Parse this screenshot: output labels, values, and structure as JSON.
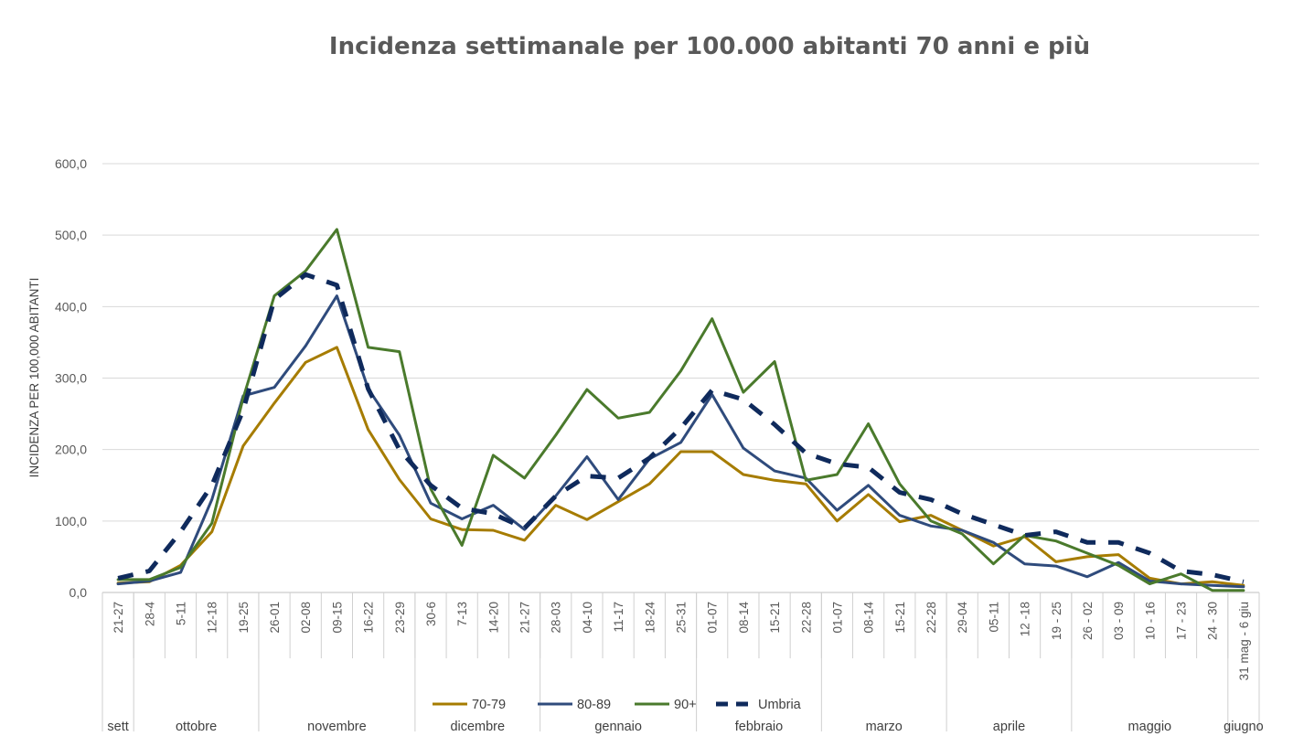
{
  "chart_data": {
    "type": "line",
    "title": "Incidenza settimanale per 100.000 abitanti 70 anni e più",
    "ylabel": "INCIDENZA PER 100,000 ABITANTI",
    "ylim": [
      0,
      600
    ],
    "y_ticks": [
      "0,0",
      "100,0",
      "200,0",
      "300,0",
      "400,0",
      "500,0",
      "600,0"
    ],
    "grid": true,
    "legend_position": "bottom",
    "categories": [
      "21-27",
      "28-4",
      "5-11",
      "12-18",
      "19-25",
      "26-01",
      "02-08",
      "09-15",
      "16-22",
      "23-29",
      "30-6",
      "7-13",
      "14-20",
      "21-27",
      "28-03",
      "04-10",
      "11-17",
      "18-24",
      "25-31",
      "01-07",
      "08-14",
      "15-21",
      "22-28",
      "01-07",
      "08-14",
      "15-21",
      "22-28",
      "29-04",
      "05-11",
      "12 -18",
      "19 - 25",
      "26 - 02",
      "03 - 09",
      "10 - 16",
      "17 - 23",
      "24 - 30",
      "31 mag - 6 giu"
    ],
    "months": [
      {
        "label": "sett",
        "start": 0,
        "end": 0
      },
      {
        "label": "ottobre",
        "start": 1,
        "end": 4
      },
      {
        "label": "novembre",
        "start": 5,
        "end": 9
      },
      {
        "label": "dicembre",
        "start": 10,
        "end": 13
      },
      {
        "label": "gennaio",
        "start": 14,
        "end": 18
      },
      {
        "label": "febbraio",
        "start": 19,
        "end": 22
      },
      {
        "label": "marzo",
        "start": 23,
        "end": 26
      },
      {
        "label": "aprile",
        "start": 27,
        "end": 30
      },
      {
        "label": "maggio",
        "start": 31,
        "end": 35
      },
      {
        "label": "giugno",
        "start": 36,
        "end": 36
      }
    ],
    "series": [
      {
        "name": "70-79",
        "color": "#A67C00",
        "dashed": false,
        "values": [
          13,
          15,
          38,
          85,
          205,
          265,
          322,
          343,
          228,
          158,
          103,
          88,
          87,
          73,
          122,
          102,
          127,
          152,
          197,
          197,
          165,
          157,
          152,
          100,
          137,
          99,
          108,
          87,
          65,
          78,
          43,
          50,
          53,
          20,
          12,
          15,
          10
        ]
      },
      {
        "name": "80-89",
        "color": "#2F4B7C",
        "dashed": false,
        "values": [
          12,
          16,
          28,
          130,
          275,
          287,
          345,
          415,
          285,
          220,
          125,
          103,
          122,
          88,
          135,
          190,
          130,
          187,
          210,
          277,
          202,
          170,
          160,
          115,
          150,
          108,
          93,
          87,
          70,
          40,
          37,
          22,
          42,
          16,
          12,
          10,
          8
        ]
      },
      {
        "name": "90+",
        "color": "#4A7A2C",
        "dashed": false,
        "values": [
          18,
          18,
          35,
          97,
          272,
          415,
          450,
          508,
          343,
          337,
          145,
          66,
          192,
          160,
          220,
          284,
          244,
          252,
          310,
          383,
          280,
          323,
          157,
          165,
          236,
          152,
          100,
          82,
          40,
          80,
          72,
          55,
          38,
          12,
          26,
          3,
          3
        ]
      },
      {
        "name": "Umbria",
        "color": "#0F2A5C",
        "dashed": true,
        "values": [
          20,
          30,
          85,
          150,
          255,
          410,
          445,
          430,
          285,
          200,
          150,
          118,
          110,
          90,
          135,
          163,
          160,
          188,
          230,
          283,
          270,
          235,
          195,
          180,
          175,
          140,
          130,
          110,
          95,
          80,
          85,
          70,
          70,
          55,
          30,
          25,
          15
        ]
      }
    ]
  }
}
